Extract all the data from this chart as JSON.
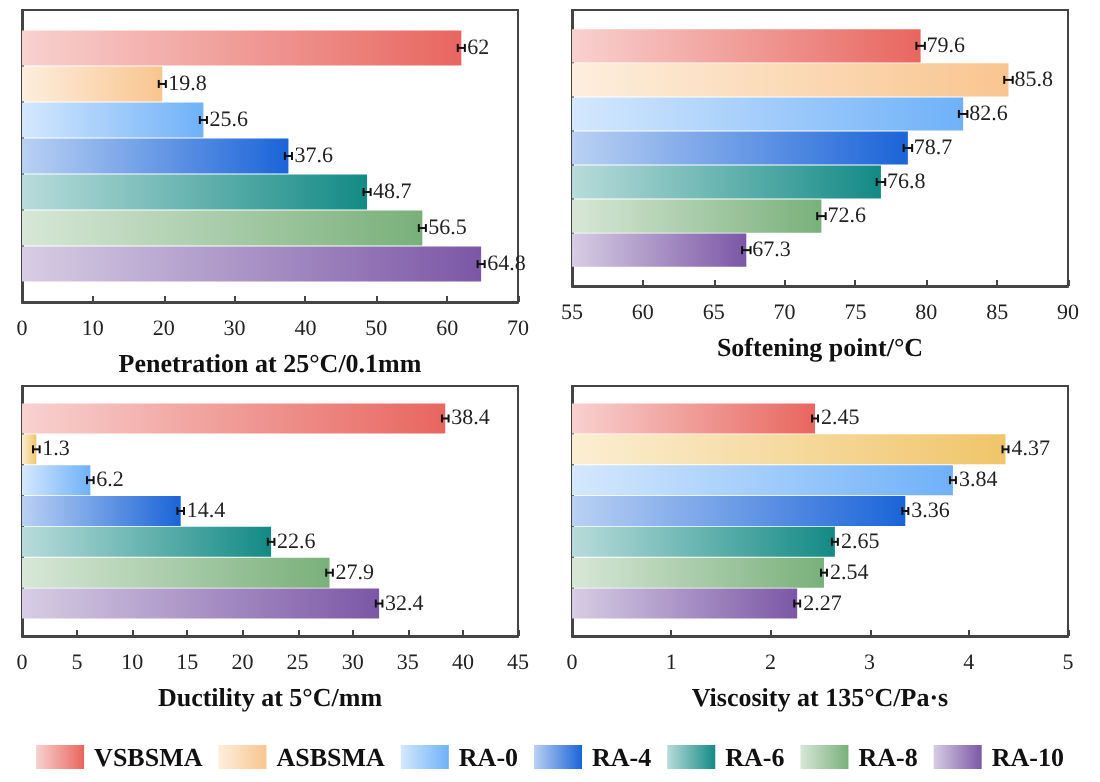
{
  "chart_data": [
    {
      "type": "bar",
      "orientation": "horizontal",
      "xlabel": "Penetration at 25°C/0.1mm",
      "categories": [
        null
      ],
      "legend": "bottom",
      "xlim": [
        0,
        70
      ],
      "xticks": [
        0,
        10,
        20,
        30,
        40,
        50,
        60,
        70
      ],
      "data_labels": true,
      "series": [
        {
          "name": "VSBSMA",
          "color": "#e8665f",
          "values": [
            62
          ],
          "errors": [
            0.5
          ]
        },
        {
          "name": "ASBSMA",
          "color": "#f9c58f",
          "values": [
            19.8
          ],
          "errors": [
            0.5
          ]
        },
        {
          "name": "RA-0",
          "color": "#6fb1f8",
          "values": [
            25.6
          ],
          "errors": [
            0.5
          ]
        },
        {
          "name": "RA-4",
          "color": "#1a64d8",
          "values": [
            37.6
          ],
          "errors": [
            0.5
          ]
        },
        {
          "name": "RA-6",
          "color": "#138a85",
          "values": [
            48.7
          ],
          "errors": [
            0.5
          ]
        },
        {
          "name": "RA-8",
          "color": "#79b07a",
          "values": [
            56.5
          ],
          "errors": [
            0.5
          ]
        },
        {
          "name": "RA-10",
          "color": "#7b57a6",
          "values": [
            64.8
          ],
          "errors": [
            0.5
          ]
        }
      ]
    },
    {
      "type": "bar",
      "orientation": "horizontal",
      "xlabel": "Softening point/°C",
      "categories": [
        null
      ],
      "xlim": [
        55,
        90
      ],
      "xticks": [
        55,
        60,
        65,
        70,
        75,
        80,
        85,
        90
      ],
      "data_labels": true,
      "series": [
        {
          "color": "#e8665f",
          "values": [
            79.6
          ],
          "errors": [
            0.3
          ]
        },
        {
          "color": "#f9c58f",
          "values": [
            85.8
          ],
          "errors": [
            0.3
          ]
        },
        {
          "color": "#6fb1f8",
          "values": [
            82.6
          ],
          "errors": [
            0.3
          ]
        },
        {
          "color": "#1a64d8",
          "values": [
            78.7
          ],
          "errors": [
            0.3
          ]
        },
        {
          "color": "#138a85",
          "values": [
            76.8
          ],
          "errors": [
            0.3
          ]
        },
        {
          "color": "#79b07a",
          "values": [
            72.6
          ],
          "errors": [
            0.3
          ]
        },
        {
          "color": "#7b57a6",
          "values": [
            67.3
          ],
          "errors": [
            0.3
          ]
        }
      ]
    },
    {
      "type": "bar",
      "orientation": "horizontal",
      "xlabel": "Ductility at 5°C/mm",
      "categories": [
        null
      ],
      "xlim": [
        0,
        45
      ],
      "xticks": [
        0,
        5,
        10,
        15,
        20,
        25,
        30,
        35,
        40,
        45
      ],
      "data_labels": true,
      "series": [
        {
          "color": "#e8665f",
          "values": [
            38.4
          ],
          "errors": [
            0.3
          ]
        },
        {
          "color": "#f0c56a",
          "values": [
            1.3
          ],
          "errors": [
            0.3
          ]
        },
        {
          "color": "#6fb1f8",
          "values": [
            6.2
          ],
          "errors": [
            0.3
          ]
        },
        {
          "color": "#1a64d8",
          "values": [
            14.4
          ],
          "errors": [
            0.3
          ]
        },
        {
          "color": "#138a85",
          "values": [
            22.6
          ],
          "errors": [
            0.3
          ]
        },
        {
          "color": "#79b07a",
          "values": [
            27.9
          ],
          "errors": [
            0.3
          ]
        },
        {
          "color": "#7b57a6",
          "values": [
            32.4
          ],
          "errors": [
            0.3
          ]
        }
      ]
    },
    {
      "type": "bar",
      "orientation": "horizontal",
      "xlabel": "Viscosity at 135°C/Pa·s",
      "categories": [
        null
      ],
      "xlim": [
        0,
        5
      ],
      "xticks": [
        0,
        1,
        2,
        3,
        4,
        5
      ],
      "data_labels": true,
      "series": [
        {
          "color": "#e8665f",
          "values": [
            2.45
          ],
          "errors": [
            0.03
          ]
        },
        {
          "color": "#f0c56a",
          "values": [
            4.37
          ],
          "errors": [
            0.03
          ]
        },
        {
          "color": "#6fb1f8",
          "values": [
            3.84
          ],
          "errors": [
            0.03
          ]
        },
        {
          "color": "#1a64d8",
          "values": [
            3.36
          ],
          "errors": [
            0.03
          ]
        },
        {
          "color": "#138a85",
          "values": [
            2.65
          ],
          "errors": [
            0.03
          ]
        },
        {
          "color": "#79b07a",
          "values": [
            2.54
          ],
          "errors": [
            0.03
          ]
        },
        {
          "color": "#7b57a6",
          "values": [
            2.27
          ],
          "errors": [
            0.03
          ]
        }
      ]
    }
  ]
}
